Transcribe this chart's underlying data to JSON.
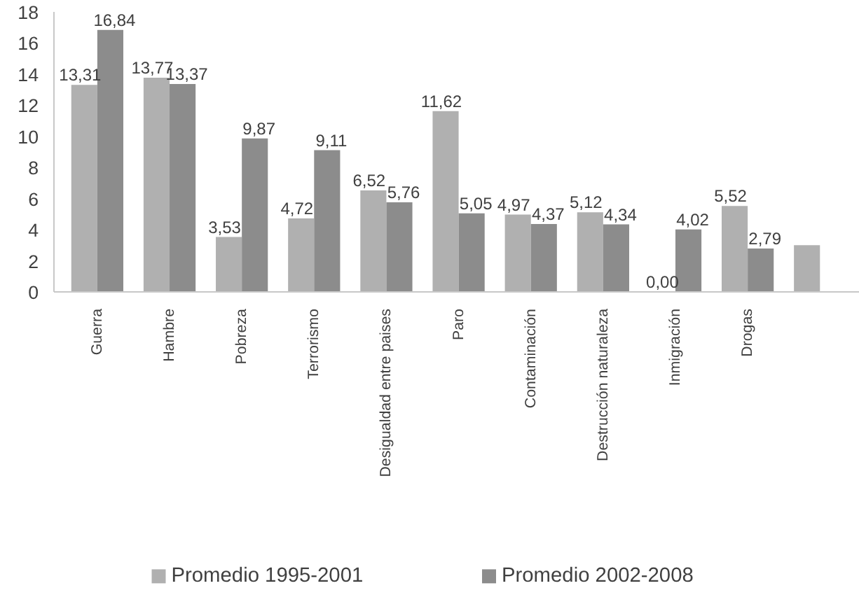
{
  "chart_data": {
    "type": "bar",
    "categories": [
      "Guerra",
      "Hambre",
      "Pobreza",
      "Terrorismo",
      "Desigualdad entre paises",
      "Paro",
      "Contaminación",
      "Destrucción naturaleza",
      "Inmigración",
      "Drogas",
      null
    ],
    "series": [
      {
        "name": "Promedio 1995-2001",
        "color": "#b0b0b0",
        "values": [
          13.31,
          13.77,
          3.53,
          4.72,
          6.52,
          11.62,
          4.97,
          5.12,
          0.0,
          5.52,
          3.0
        ],
        "value_labels": [
          "13,31",
          "13,77",
          "3,53",
          "4,72",
          "6,52",
          "11,62",
          "4,97",
          "5,12",
          "0,00",
          "5,52",
          null
        ]
      },
      {
        "name": "Promedio 2002-2008",
        "color": "#8c8c8c",
        "values": [
          16.84,
          13.37,
          9.87,
          9.11,
          5.76,
          5.05,
          4.37,
          4.34,
          4.02,
          2.79,
          null
        ],
        "value_labels": [
          "16,84",
          "13,37",
          "9,87",
          "9,11",
          "5,76",
          "5,05",
          "4,37",
          "4,34",
          "4,02",
          "2,79",
          null
        ]
      }
    ],
    "ylim": [
      0,
      18
    ],
    "yticks": [
      0,
      2,
      4,
      6,
      8,
      10,
      12,
      14,
      16,
      18
    ],
    "grid": false,
    "legend": "bottom"
  }
}
